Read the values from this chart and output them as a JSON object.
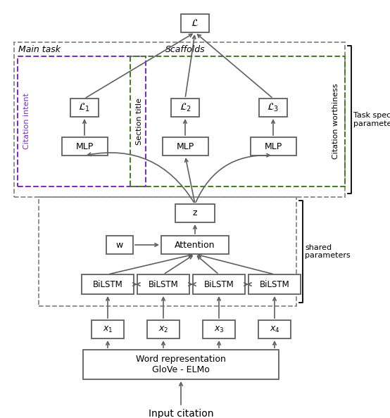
{
  "background_color": "#ffffff",
  "box_edge_color": "#606060",
  "box_face_color": "#ffffff",
  "arrow_color": "#606060",
  "purple_color": "#7B2FBE",
  "green_color": "#4A7C2F",
  "gray_color": "#888888",
  "main_task_label": "Main task",
  "scaffolds_label": "Scaffolds",
  "citation_intent_label": "Citation intent",
  "section_title_label": "Section title",
  "citation_worthiness_label": "Citation worthiness",
  "task_specific_label": "Task specific\nparameters",
  "shared_params_label": "shared\nparameters",
  "input_label": "Input citation",
  "word_rep_line1": "Word representation",
  "word_rep_line2": "GloVe - ELMo"
}
